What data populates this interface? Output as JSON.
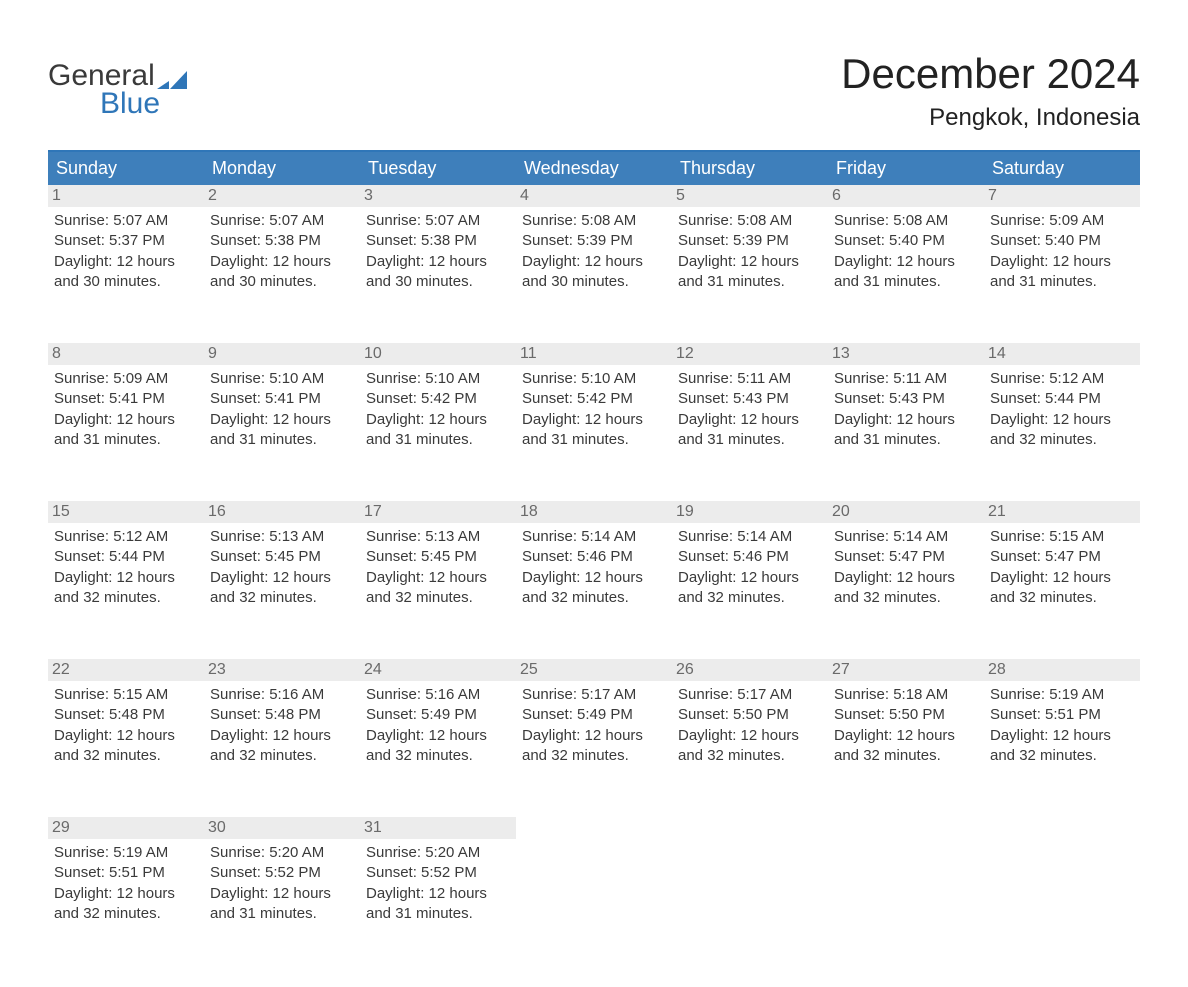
{
  "logo": {
    "general": "General",
    "blue": "Blue",
    "flag_color": "#2f76b8"
  },
  "title": "December 2024",
  "location": "Pengkok, Indonesia",
  "colors": {
    "header_bg": "#3e7fbb",
    "header_text": "#ffffff",
    "rule": "#3e7fbb",
    "daynum_bg": "#ececec",
    "daynum_text": "#6a6a6a",
    "body_text": "#3a3a3a",
    "page_bg": "#ffffff",
    "logo_blue": "#2f76b8"
  },
  "weekdays": [
    "Sunday",
    "Monday",
    "Tuesday",
    "Wednesday",
    "Thursday",
    "Friday",
    "Saturday"
  ],
  "weeks": [
    [
      {
        "n": "1",
        "sr": "5:07 AM",
        "ss": "5:37 PM",
        "dl": "12 hours and 30 minutes."
      },
      {
        "n": "2",
        "sr": "5:07 AM",
        "ss": "5:38 PM",
        "dl": "12 hours and 30 minutes."
      },
      {
        "n": "3",
        "sr": "5:07 AM",
        "ss": "5:38 PM",
        "dl": "12 hours and 30 minutes."
      },
      {
        "n": "4",
        "sr": "5:08 AM",
        "ss": "5:39 PM",
        "dl": "12 hours and 30 minutes."
      },
      {
        "n": "5",
        "sr": "5:08 AM",
        "ss": "5:39 PM",
        "dl": "12 hours and 31 minutes."
      },
      {
        "n": "6",
        "sr": "5:08 AM",
        "ss": "5:40 PM",
        "dl": "12 hours and 31 minutes."
      },
      {
        "n": "7",
        "sr": "5:09 AM",
        "ss": "5:40 PM",
        "dl": "12 hours and 31 minutes."
      }
    ],
    [
      {
        "n": "8",
        "sr": "5:09 AM",
        "ss": "5:41 PM",
        "dl": "12 hours and 31 minutes."
      },
      {
        "n": "9",
        "sr": "5:10 AM",
        "ss": "5:41 PM",
        "dl": "12 hours and 31 minutes."
      },
      {
        "n": "10",
        "sr": "5:10 AM",
        "ss": "5:42 PM",
        "dl": "12 hours and 31 minutes."
      },
      {
        "n": "11",
        "sr": "5:10 AM",
        "ss": "5:42 PM",
        "dl": "12 hours and 31 minutes."
      },
      {
        "n": "12",
        "sr": "5:11 AM",
        "ss": "5:43 PM",
        "dl": "12 hours and 31 minutes."
      },
      {
        "n": "13",
        "sr": "5:11 AM",
        "ss": "5:43 PM",
        "dl": "12 hours and 31 minutes."
      },
      {
        "n": "14",
        "sr": "5:12 AM",
        "ss": "5:44 PM",
        "dl": "12 hours and 32 minutes."
      }
    ],
    [
      {
        "n": "15",
        "sr": "5:12 AM",
        "ss": "5:44 PM",
        "dl": "12 hours and 32 minutes."
      },
      {
        "n": "16",
        "sr": "5:13 AM",
        "ss": "5:45 PM",
        "dl": "12 hours and 32 minutes."
      },
      {
        "n": "17",
        "sr": "5:13 AM",
        "ss": "5:45 PM",
        "dl": "12 hours and 32 minutes."
      },
      {
        "n": "18",
        "sr": "5:14 AM",
        "ss": "5:46 PM",
        "dl": "12 hours and 32 minutes."
      },
      {
        "n": "19",
        "sr": "5:14 AM",
        "ss": "5:46 PM",
        "dl": "12 hours and 32 minutes."
      },
      {
        "n": "20",
        "sr": "5:14 AM",
        "ss": "5:47 PM",
        "dl": "12 hours and 32 minutes."
      },
      {
        "n": "21",
        "sr": "5:15 AM",
        "ss": "5:47 PM",
        "dl": "12 hours and 32 minutes."
      }
    ],
    [
      {
        "n": "22",
        "sr": "5:15 AM",
        "ss": "5:48 PM",
        "dl": "12 hours and 32 minutes."
      },
      {
        "n": "23",
        "sr": "5:16 AM",
        "ss": "5:48 PM",
        "dl": "12 hours and 32 minutes."
      },
      {
        "n": "24",
        "sr": "5:16 AM",
        "ss": "5:49 PM",
        "dl": "12 hours and 32 minutes."
      },
      {
        "n": "25",
        "sr": "5:17 AM",
        "ss": "5:49 PM",
        "dl": "12 hours and 32 minutes."
      },
      {
        "n": "26",
        "sr": "5:17 AM",
        "ss": "5:50 PM",
        "dl": "12 hours and 32 minutes."
      },
      {
        "n": "27",
        "sr": "5:18 AM",
        "ss": "5:50 PM",
        "dl": "12 hours and 32 minutes."
      },
      {
        "n": "28",
        "sr": "5:19 AM",
        "ss": "5:51 PM",
        "dl": "12 hours and 32 minutes."
      }
    ],
    [
      {
        "n": "29",
        "sr": "5:19 AM",
        "ss": "5:51 PM",
        "dl": "12 hours and 32 minutes."
      },
      {
        "n": "30",
        "sr": "5:20 AM",
        "ss": "5:52 PM",
        "dl": "12 hours and 31 minutes."
      },
      {
        "n": "31",
        "sr": "5:20 AM",
        "ss": "5:52 PM",
        "dl": "12 hours and 31 minutes."
      },
      null,
      null,
      null,
      null
    ]
  ],
  "labels": {
    "sunrise": "Sunrise: ",
    "sunset": "Sunset: ",
    "daylight": "Daylight: "
  }
}
